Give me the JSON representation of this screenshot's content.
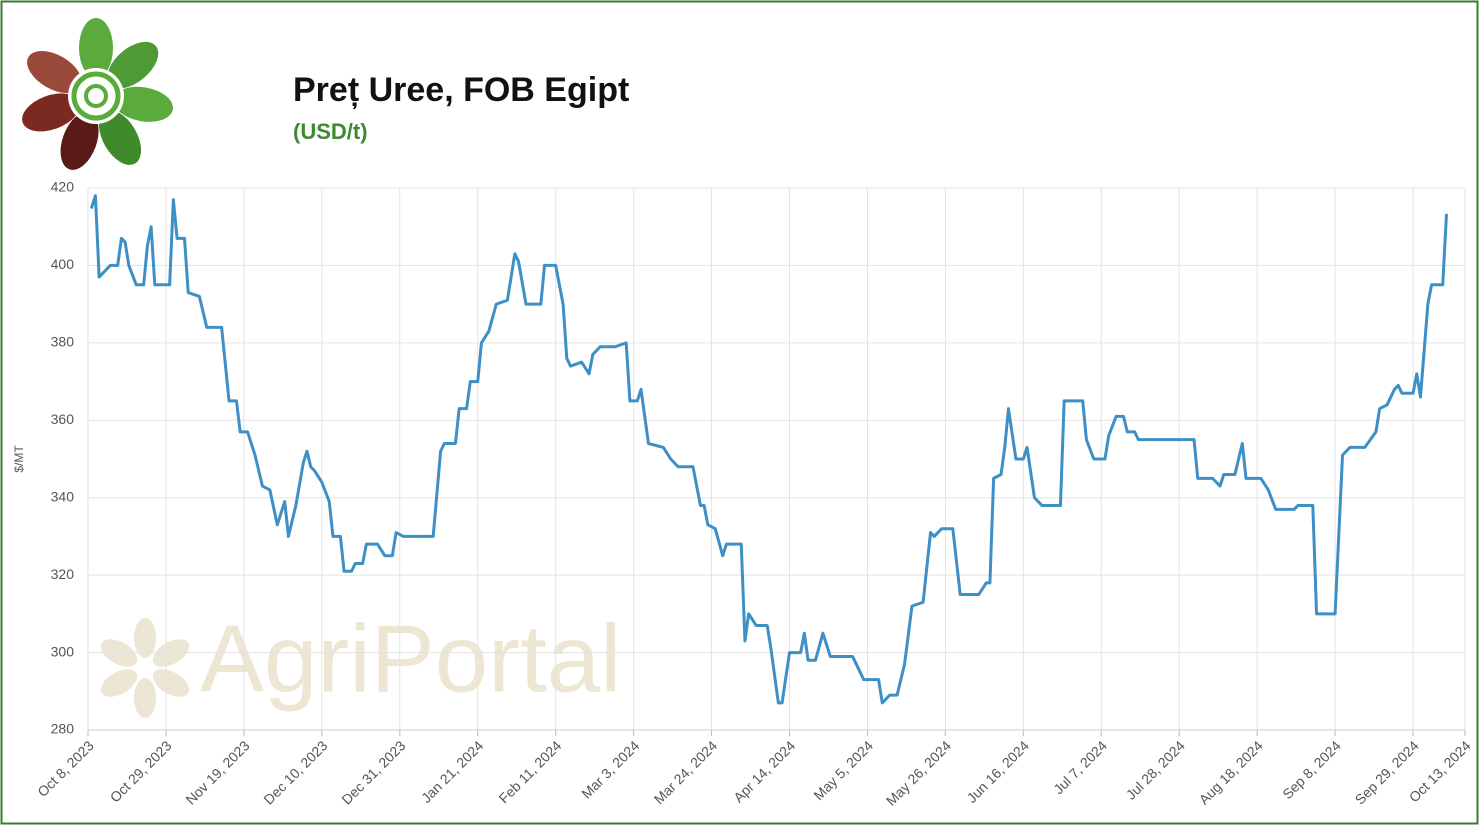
{
  "chart_data": {
    "type": "line",
    "title": "Preț Uree, FOB Egipt",
    "subtitle": "(USD/t)",
    "y_label": "$/MT",
    "watermark": "AgriPortal",
    "grid": true,
    "xlim": [
      "2023-10-08",
      "2024-10-13"
    ],
    "ylim": [
      280,
      420
    ],
    "yticks": [
      280,
      300,
      320,
      340,
      360,
      380,
      400,
      420
    ],
    "xticks": [
      {
        "value": "2023-10-08",
        "label": "Oct 8, 2023"
      },
      {
        "value": "2023-10-29",
        "label": "Oct 29, 2023"
      },
      {
        "value": "2023-11-19",
        "label": "Nov 19, 2023"
      },
      {
        "value": "2023-12-10",
        "label": "Dec 10, 2023"
      },
      {
        "value": "2023-12-31",
        "label": "Dec 31, 2023"
      },
      {
        "value": "2024-01-21",
        "label": "Jan 21, 2024"
      },
      {
        "value": "2024-02-11",
        "label": "Feb 11, 2024"
      },
      {
        "value": "2024-03-03",
        "label": "Mar 3, 2024"
      },
      {
        "value": "2024-03-24",
        "label": "Mar 24, 2024"
      },
      {
        "value": "2024-04-14",
        "label": "Apr 14, 2024"
      },
      {
        "value": "2024-05-05",
        "label": "May 5, 2024"
      },
      {
        "value": "2024-05-26",
        "label": "May 26, 2024"
      },
      {
        "value": "2024-06-16",
        "label": "Jun 16, 2024"
      },
      {
        "value": "2024-07-07",
        "label": "Jul 7, 2024"
      },
      {
        "value": "2024-07-28",
        "label": "Jul 28, 2024"
      },
      {
        "value": "2024-08-18",
        "label": "Aug 18, 2024"
      },
      {
        "value": "2024-09-08",
        "label": "Sep 8, 2024"
      },
      {
        "value": "2024-09-29",
        "label": "Sep 29, 2024"
      },
      {
        "value": "2024-10-13",
        "label": "Oct 13, 2024"
      }
    ],
    "x": [
      "2023-10-09",
      "2023-10-10",
      "2023-10-11",
      "2023-10-14",
      "2023-10-16",
      "2023-10-17",
      "2023-10-18",
      "2023-10-19",
      "2023-10-21",
      "2023-10-23",
      "2023-10-24",
      "2023-10-25",
      "2023-10-26",
      "2023-10-30",
      "2023-10-31",
      "2023-11-01",
      "2023-11-03",
      "2023-11-04",
      "2023-11-07",
      "2023-11-09",
      "2023-11-13",
      "2023-11-15",
      "2023-11-17",
      "2023-11-18",
      "2023-11-20",
      "2023-11-22",
      "2023-11-24",
      "2023-11-26",
      "2023-11-28",
      "2023-11-30",
      "2023-12-01",
      "2023-12-03",
      "2023-12-05",
      "2023-12-06",
      "2023-12-07",
      "2023-12-08",
      "2023-12-10",
      "2023-12-12",
      "2023-12-13",
      "2023-12-15",
      "2023-12-16",
      "2023-12-18",
      "2023-12-19",
      "2023-12-21",
      "2023-12-22",
      "2023-12-25",
      "2023-12-27",
      "2023-12-29",
      "2023-12-30",
      "2024-01-01",
      "2024-01-09",
      "2024-01-11",
      "2024-01-12",
      "2024-01-15",
      "2024-01-16",
      "2024-01-18",
      "2024-01-19",
      "2024-01-21",
      "2024-01-22",
      "2024-01-24",
      "2024-01-26",
      "2024-01-29",
      "2024-01-31",
      "2024-02-01",
      "2024-02-03",
      "2024-02-07",
      "2024-02-08",
      "2024-02-11",
      "2024-02-13",
      "2024-02-14",
      "2024-02-15",
      "2024-02-18",
      "2024-02-20",
      "2024-02-21",
      "2024-02-23",
      "2024-02-27",
      "2024-03-01",
      "2024-03-02",
      "2024-03-04",
      "2024-03-05",
      "2024-03-07",
      "2024-03-11",
      "2024-03-13",
      "2024-03-15",
      "2024-03-19",
      "2024-03-21",
      "2024-03-22",
      "2024-03-23",
      "2024-03-25",
      "2024-03-27",
      "2024-03-28",
      "2024-04-01",
      "2024-04-02",
      "2024-04-03",
      "2024-04-05",
      "2024-04-08",
      "2024-04-09",
      "2024-04-11",
      "2024-04-12",
      "2024-04-14",
      "2024-04-17",
      "2024-04-18",
      "2024-04-19",
      "2024-04-21",
      "2024-04-23",
      "2024-04-25",
      "2024-05-01",
      "2024-05-04",
      "2024-05-08",
      "2024-05-09",
      "2024-05-11",
      "2024-05-13",
      "2024-05-15",
      "2024-05-17",
      "2024-05-20",
      "2024-05-22",
      "2024-05-23",
      "2024-05-25",
      "2024-05-28",
      "2024-05-30",
      "2024-06-04",
      "2024-06-06",
      "2024-06-07",
      "2024-06-08",
      "2024-06-10",
      "2024-06-11",
      "2024-06-12",
      "2024-06-14",
      "2024-06-16",
      "2024-06-17",
      "2024-06-19",
      "2024-06-21",
      "2024-06-26",
      "2024-06-27",
      "2024-07-02",
      "2024-07-03",
      "2024-07-05",
      "2024-07-08",
      "2024-07-09",
      "2024-07-11",
      "2024-07-13",
      "2024-07-14",
      "2024-07-16",
      "2024-07-17",
      "2024-08-01",
      "2024-08-02",
      "2024-08-06",
      "2024-08-08",
      "2024-08-09",
      "2024-08-12",
      "2024-08-14",
      "2024-08-15",
      "2024-08-19",
      "2024-08-21",
      "2024-08-23",
      "2024-08-28",
      "2024-08-29",
      "2024-09-02",
      "2024-09-03",
      "2024-09-08",
      "2024-09-10",
      "2024-09-12",
      "2024-09-16",
      "2024-09-19",
      "2024-09-20",
      "2024-09-22",
      "2024-09-24",
      "2024-09-25",
      "2024-09-26",
      "2024-09-29",
      "2024-09-30",
      "2024-10-01",
      "2024-10-03",
      "2024-10-04",
      "2024-10-07",
      "2024-10-08"
    ],
    "series": [
      {
        "name": "Uree FOB Egipt",
        "color": "#3d8fc6",
        "values": [
          415,
          418,
          397,
          400,
          400,
          407,
          406,
          400,
          395,
          395,
          405,
          410,
          395,
          395,
          417,
          407,
          407,
          393,
          392,
          384,
          384,
          365,
          365,
          357,
          357,
          351,
          343,
          342,
          333,
          339,
          330,
          338,
          349,
          352,
          348,
          347,
          344,
          339,
          330,
          330,
          321,
          321,
          323,
          323,
          328,
          328,
          325,
          325,
          331,
          330,
          330,
          352,
          354,
          354,
          363,
          363,
          370,
          370,
          380,
          383,
          390,
          391,
          403,
          401,
          390,
          390,
          400,
          400,
          390,
          376,
          374,
          375,
          372,
          377,
          379,
          379,
          380,
          365,
          365,
          368,
          354,
          353,
          350,
          348,
          348,
          338,
          338,
          333,
          332,
          325,
          328,
          328,
          303,
          310,
          307,
          307,
          301,
          287,
          287,
          300,
          300,
          305,
          298,
          298,
          305,
          299,
          299,
          293,
          293,
          287,
          289,
          289,
          297,
          312,
          313,
          331,
          330,
          332,
          332,
          315,
          315,
          318,
          318,
          345,
          346,
          353,
          363,
          350,
          350,
          353,
          340,
          338,
          338,
          365,
          365,
          355,
          350,
          350,
          356,
          361,
          361,
          357,
          357,
          355,
          355,
          345,
          345,
          343,
          346,
          346,
          354,
          345,
          345,
          342,
          337,
          337,
          338,
          338,
          310,
          310,
          351,
          353,
          353,
          357,
          363,
          364,
          368,
          369,
          367,
          367,
          372,
          366,
          390,
          395,
          395,
          413
        ]
      }
    ]
  }
}
